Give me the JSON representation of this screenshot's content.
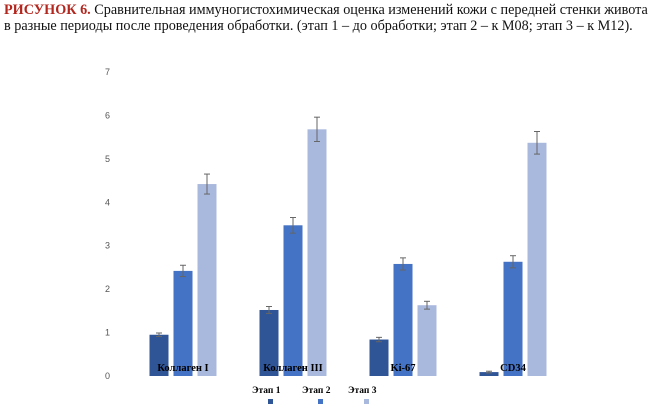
{
  "caption": {
    "label": "РИСУНОК 6.",
    "text": " Сравнительная иммуногистохимическая оценка изменений кожи с передней стенки живота в разные периоды после проведения обработки. (этап 1 – до обработки; этап 2 – к М08; этап 3 – к М12)."
  },
  "chart_data": {
    "type": "bar",
    "title": "",
    "xlabel": "",
    "ylabel": "",
    "ylim": [
      0,
      7
    ],
    "yticks": [
      0,
      1,
      2,
      3,
      4,
      5,
      6,
      7
    ],
    "grid": false,
    "legend_position": "bottom",
    "categories": [
      "Коллаген I",
      "Коллаген III",
      "Ki-67",
      "CD34"
    ],
    "series": [
      {
        "name": "Этап 1",
        "color": "#2f5597",
        "values": [
          0.95,
          1.52,
          0.84,
          0.09
        ],
        "errors": [
          0.04,
          0.08,
          0.05,
          0.02
        ]
      },
      {
        "name": "Этап 2",
        "color": "#4472c4",
        "values": [
          2.42,
          3.47,
          2.58,
          2.63
        ],
        "errors": [
          0.13,
          0.18,
          0.14,
          0.14
        ]
      },
      {
        "name": "Этап 3",
        "color": "#a9b8dd",
        "values": [
          4.42,
          5.68,
          1.63,
          5.37
        ],
        "errors": [
          0.23,
          0.28,
          0.09,
          0.26
        ]
      }
    ]
  }
}
